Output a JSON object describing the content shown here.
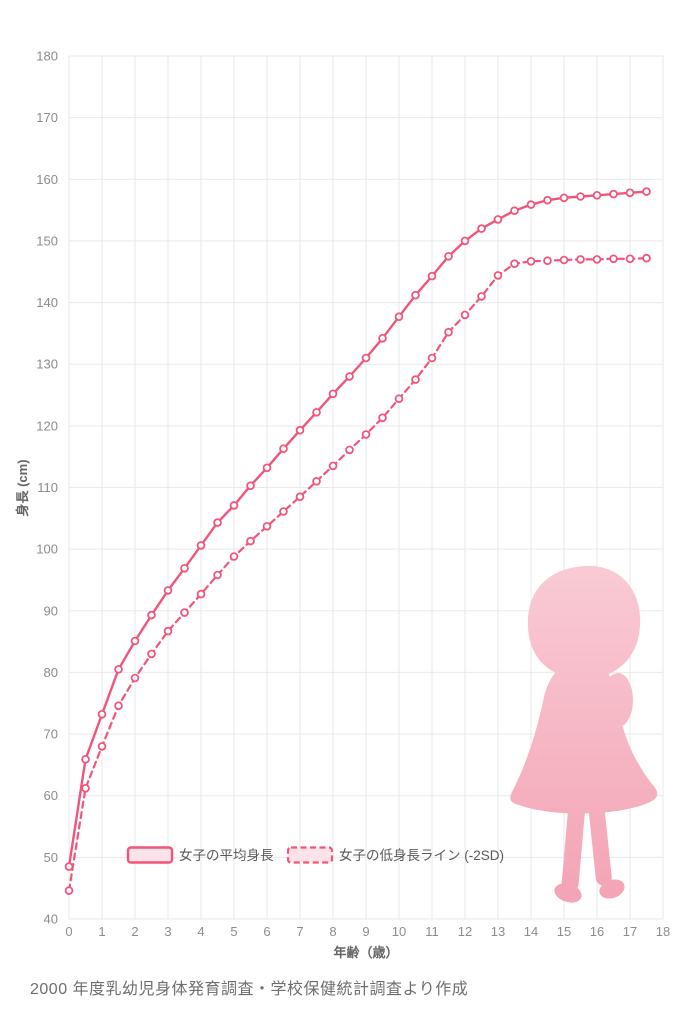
{
  "caption": "2000 年度乳幼児身体発育調査・学校保健統計調査より作成",
  "decoration": {
    "silhouette": "girl-silhouette"
  },
  "chart_data": {
    "type": "line",
    "title": "",
    "xlabel": "年齢（歳）",
    "ylabel": "身長 (cm)",
    "xlim": [
      0,
      18
    ],
    "ylim": [
      40,
      180
    ],
    "grid": true,
    "legend_position": "inside-bottom-left",
    "x_ticks": [
      0,
      1,
      2,
      3,
      4,
      5,
      6,
      7,
      8,
      9,
      10,
      11,
      12,
      13,
      14,
      15,
      16,
      17,
      18
    ],
    "y_ticks": [
      40,
      50,
      60,
      70,
      80,
      90,
      100,
      110,
      120,
      130,
      140,
      150,
      160,
      170,
      180
    ],
    "x": [
      0,
      0.5,
      1,
      1.5,
      2,
      2.5,
      3,
      3.5,
      4,
      4.5,
      5,
      5.5,
      6,
      6.5,
      7,
      7.5,
      8,
      8.5,
      9,
      9.5,
      10,
      10.5,
      11,
      11.5,
      12,
      12.5,
      13,
      13.5,
      14,
      14.5,
      15,
      15.5,
      16,
      16.5,
      17,
      17.5
    ],
    "series": [
      {
        "name": "女子の平均身長",
        "line_style": "solid",
        "values": [
          48.5,
          65.9,
          73.2,
          80.5,
          85.1,
          89.3,
          93.3,
          96.9,
          100.6,
          104.3,
          107.1,
          110.3,
          113.2,
          116.3,
          119.3,
          122.2,
          125.2,
          128.0,
          131.0,
          134.2,
          137.7,
          141.2,
          144.3,
          147.5,
          150.0,
          152.0,
          153.5,
          154.9,
          155.9,
          156.6,
          157.0,
          157.2,
          157.4,
          157.6,
          157.8,
          158.0
        ]
      },
      {
        "name": "女子の低身長ライン (-2SD)",
        "line_style": "dashed",
        "values": [
          44.6,
          61.2,
          68.0,
          74.6,
          79.1,
          83.0,
          86.7,
          89.7,
          92.7,
          95.8,
          98.8,
          101.3,
          103.7,
          106.1,
          108.5,
          111.0,
          113.5,
          116.1,
          118.6,
          121.3,
          124.4,
          127.5,
          131.0,
          135.2,
          138.0,
          141.0,
          144.4,
          146.3,
          146.7,
          146.8,
          146.9,
          147.0,
          147.0,
          147.1,
          147.1,
          147.2
        ]
      }
    ],
    "colors": {
      "line": "#f2557a",
      "marker_fill": "#ffffff",
      "legend_fill": "#fbe3e9",
      "grid": "#e9e9e9",
      "tick_label": "#8c8c8c",
      "axis_title": "#666666",
      "legend_text": "#5a5a5a",
      "caption": "#6e6e6e",
      "silhouette_top": "#f9cbd5",
      "silhouette_bottom": "#f3a3b5",
      "background": "#ffffff"
    }
  }
}
